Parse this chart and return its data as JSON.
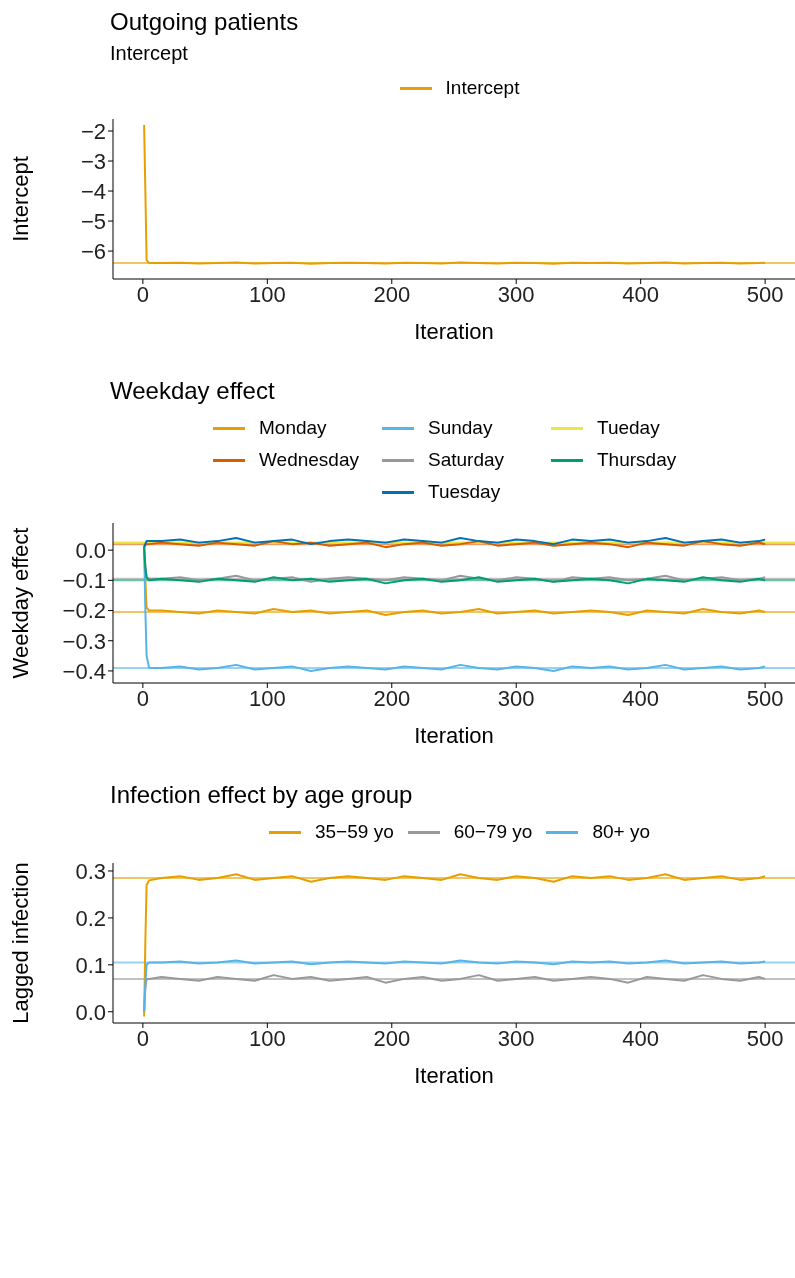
{
  "chart_data": [
    {
      "type": "line",
      "title": "Outgoing patients",
      "subtitle": "Intercept",
      "xlabel": "Iteration",
      "ylabel": "Intercept",
      "legend": "top",
      "grid": false,
      "x": [
        1,
        2,
        3,
        5,
        15,
        30,
        45,
        60,
        75,
        90,
        105,
        120,
        135,
        150,
        165,
        180,
        195,
        210,
        225,
        240,
        255,
        270,
        285,
        300,
        315,
        330,
        345,
        360,
        375,
        390,
        405,
        420,
        435,
        450,
        465,
        480,
        495,
        500
      ],
      "xlim": [
        -24,
        524
      ],
      "xticks": [
        0,
        100,
        200,
        300,
        400,
        500
      ],
      "ylim": [
        -6.93,
        -1.6
      ],
      "yticks": [
        {
          "value": -6,
          "label": "−6"
        },
        {
          "value": -5,
          "label": "−5"
        },
        {
          "value": -4,
          "label": "−4"
        },
        {
          "value": -3,
          "label": "−3"
        },
        {
          "value": -2,
          "label": "−2"
        }
      ],
      "series": [
        {
          "name": "Intercept",
          "color": "#e69f00",
          "values": [
            -1.8,
            -4.0,
            -6.3,
            -6.4,
            -6.4,
            -6.39,
            -6.41,
            -6.4,
            -6.38,
            -6.41,
            -6.4,
            -6.39,
            -6.42,
            -6.4,
            -6.39,
            -6.4,
            -6.41,
            -6.39,
            -6.4,
            -6.41,
            -6.38,
            -6.4,
            -6.41,
            -6.39,
            -6.4,
            -6.42,
            -6.39,
            -6.4,
            -6.39,
            -6.41,
            -6.4,
            -6.38,
            -6.41,
            -6.4,
            -6.39,
            -6.41,
            -6.4,
            -6.39
          ]
        }
      ],
      "ref_lines": [
        {
          "axis": "y",
          "value": -6.4,
          "color": "#e69f00"
        }
      ]
    },
    {
      "type": "line",
      "title": "Weekday effect",
      "xlabel": "Iteration",
      "ylabel": "Weekday effect",
      "legend": "top",
      "grid": false,
      "x": [
        1,
        2,
        3,
        5,
        15,
        30,
        45,
        60,
        75,
        90,
        105,
        120,
        135,
        150,
        165,
        180,
        195,
        210,
        225,
        240,
        255,
        270,
        285,
        300,
        315,
        330,
        345,
        360,
        375,
        390,
        405,
        420,
        435,
        450,
        465,
        480,
        495,
        500
      ],
      "xlim": [
        -24,
        524
      ],
      "xticks": [
        0,
        100,
        200,
        300,
        400,
        500
      ],
      "ylim": [
        -0.44,
        0.09
      ],
      "yticks": [
        {
          "value": -0.4,
          "label": "−0.4"
        },
        {
          "value": -0.3,
          "label": "−0.3"
        },
        {
          "value": -0.2,
          "label": "−0.2"
        },
        {
          "value": -0.1,
          "label": "−0.1"
        },
        {
          "value": 0,
          "label": "0.0"
        }
      ],
      "series": [
        {
          "name": "Monday",
          "color": "#e69f00",
          "values": [
            0.01,
            -0.1,
            -0.19,
            -0.2,
            -0.2,
            -0.205,
            -0.21,
            -0.2,
            -0.205,
            -0.21,
            -0.195,
            -0.205,
            -0.2,
            -0.21,
            -0.205,
            -0.2,
            -0.215,
            -0.205,
            -0.2,
            -0.21,
            -0.205,
            -0.195,
            -0.21,
            -0.205,
            -0.2,
            -0.21,
            -0.205,
            -0.2,
            -0.205,
            -0.215,
            -0.2,
            -0.205,
            -0.21,
            -0.195,
            -0.205,
            -0.21,
            -0.2,
            -0.205
          ]
        },
        {
          "name": "Sunday",
          "color": "#56b4e9",
          "values": [
            0.01,
            -0.2,
            -0.35,
            -0.39,
            -0.39,
            -0.385,
            -0.395,
            -0.39,
            -0.38,
            -0.395,
            -0.39,
            -0.385,
            -0.4,
            -0.39,
            -0.385,
            -0.39,
            -0.395,
            -0.385,
            -0.39,
            -0.395,
            -0.38,
            -0.39,
            -0.395,
            -0.385,
            -0.39,
            -0.4,
            -0.385,
            -0.39,
            -0.385,
            -0.395,
            -0.39,
            -0.38,
            -0.395,
            -0.39,
            -0.385,
            -0.395,
            -0.39,
            -0.385
          ]
        },
        {
          "name": "Tueday",
          "color": "#f0e442",
          "x": [
            -24,
            524
          ],
          "values": [
            0.025,
            0.025
          ]
        },
        {
          "name": "Wednesday",
          "color": "#d55e00",
          "values": [
            0.01,
            0.02,
            0.02,
            0.02,
            0.025,
            0.02,
            0.015,
            0.025,
            0.02,
            0.015,
            0.03,
            0.02,
            0.025,
            0.015,
            0.02,
            0.025,
            0.01,
            0.02,
            0.025,
            0.015,
            0.02,
            0.03,
            0.015,
            0.02,
            0.025,
            0.015,
            0.02,
            0.025,
            0.02,
            0.01,
            0.025,
            0.02,
            0.015,
            0.03,
            0.02,
            0.015,
            0.025,
            0.02
          ]
        },
        {
          "name": "Saturday",
          "color": "#999999",
          "values": [
            0.01,
            -0.05,
            -0.09,
            -0.095,
            -0.095,
            -0.09,
            -0.1,
            -0.095,
            -0.085,
            -0.1,
            -0.095,
            -0.09,
            -0.105,
            -0.095,
            -0.09,
            -0.095,
            -0.1,
            -0.09,
            -0.095,
            -0.1,
            -0.085,
            -0.095,
            -0.1,
            -0.09,
            -0.095,
            -0.105,
            -0.09,
            -0.095,
            -0.09,
            -0.1,
            -0.095,
            -0.085,
            -0.1,
            -0.095,
            -0.09,
            -0.1,
            -0.095,
            -0.09
          ]
        },
        {
          "name": "Thursday",
          "color": "#009e73",
          "values": [
            0.01,
            -0.06,
            -0.09,
            -0.1,
            -0.095,
            -0.1,
            -0.105,
            -0.095,
            -0.1,
            -0.105,
            -0.09,
            -0.1,
            -0.095,
            -0.105,
            -0.1,
            -0.095,
            -0.11,
            -0.1,
            -0.095,
            -0.105,
            -0.1,
            -0.09,
            -0.105,
            -0.1,
            -0.095,
            -0.105,
            -0.1,
            -0.095,
            -0.1,
            -0.11,
            -0.095,
            -0.1,
            -0.105,
            -0.09,
            -0.1,
            -0.105,
            -0.095,
            -0.1
          ]
        },
        {
          "name": "Tuesday",
          "color": "#0072b2",
          "values": [
            0.01,
            0.02,
            0.03,
            0.03,
            0.03,
            0.035,
            0.025,
            0.03,
            0.04,
            0.025,
            0.03,
            0.035,
            0.02,
            0.03,
            0.035,
            0.03,
            0.025,
            0.035,
            0.03,
            0.025,
            0.04,
            0.03,
            0.025,
            0.035,
            0.03,
            0.02,
            0.035,
            0.03,
            0.035,
            0.025,
            0.03,
            0.04,
            0.025,
            0.03,
            0.035,
            0.025,
            0.03,
            0.035
          ]
        }
      ],
      "ref_lines": [
        {
          "axis": "y",
          "value": 0.02,
          "color": "#d55e00"
        },
        {
          "axis": "y",
          "value": -0.095,
          "color": "#999999"
        },
        {
          "axis": "y",
          "value": -0.1,
          "color": "#009e73"
        },
        {
          "axis": "y",
          "value": -0.205,
          "color": "#e69f00"
        },
        {
          "axis": "y",
          "value": -0.39,
          "color": "#56b4e9"
        }
      ]
    },
    {
      "type": "line",
      "title": "Infection effect by age group",
      "xlabel": "Iteration",
      "ylabel": "Lagged infection",
      "legend": "top",
      "grid": false,
      "x": [
        1,
        2,
        3,
        5,
        15,
        30,
        45,
        60,
        75,
        90,
        105,
        120,
        135,
        150,
        165,
        180,
        195,
        210,
        225,
        240,
        255,
        270,
        285,
        300,
        315,
        330,
        345,
        360,
        375,
        390,
        405,
        420,
        435,
        450,
        465,
        480,
        495,
        500
      ],
      "xlim": [
        -24,
        524
      ],
      "xticks": [
        0,
        100,
        200,
        300,
        400,
        500
      ],
      "ylim": [
        -0.024,
        0.317
      ],
      "yticks": [
        {
          "value": 0,
          "label": "0.0"
        },
        0.1,
        0.2,
        0.3
      ],
      "series": [
        {
          "name": "35−59 yo",
          "color": "#e69f00",
          "values": [
            -0.01,
            0.15,
            0.27,
            0.28,
            0.285,
            0.289,
            0.281,
            0.285,
            0.293,
            0.281,
            0.285,
            0.289,
            0.277,
            0.285,
            0.289,
            0.285,
            0.281,
            0.289,
            0.285,
            0.281,
            0.293,
            0.285,
            0.281,
            0.289,
            0.285,
            0.277,
            0.289,
            0.285,
            0.289,
            0.281,
            0.285,
            0.293,
            0.281,
            0.285,
            0.289,
            0.281,
            0.285,
            0.289
          ]
        },
        {
          "name": "60−79 yo",
          "color": "#999999",
          "values": [
            0.0,
            0.05,
            0.07,
            0.07,
            0.074,
            0.07,
            0.066,
            0.074,
            0.07,
            0.066,
            0.078,
            0.07,
            0.074,
            0.066,
            0.07,
            0.074,
            0.062,
            0.07,
            0.074,
            0.066,
            0.07,
            0.078,
            0.066,
            0.07,
            0.074,
            0.066,
            0.07,
            0.074,
            0.07,
            0.062,
            0.074,
            0.07,
            0.066,
            0.078,
            0.07,
            0.066,
            0.074,
            0.07
          ]
        },
        {
          "name": "80+ yo",
          "color": "#56b4e9",
          "values": [
            0.0,
            0.06,
            0.1,
            0.105,
            0.105,
            0.107,
            0.103,
            0.105,
            0.109,
            0.103,
            0.105,
            0.107,
            0.101,
            0.105,
            0.107,
            0.105,
            0.103,
            0.107,
            0.105,
            0.103,
            0.109,
            0.105,
            0.103,
            0.107,
            0.105,
            0.101,
            0.107,
            0.105,
            0.107,
            0.103,
            0.105,
            0.109,
            0.103,
            0.105,
            0.107,
            0.103,
            0.105,
            0.107
          ]
        }
      ],
      "ref_lines": [
        {
          "axis": "y",
          "value": 0.285,
          "color": "#e69f00"
        },
        {
          "axis": "y",
          "value": 0.07,
          "color": "#999999"
        },
        {
          "axis": "y",
          "value": 0.105,
          "color": "#56b4e9"
        }
      ]
    }
  ]
}
